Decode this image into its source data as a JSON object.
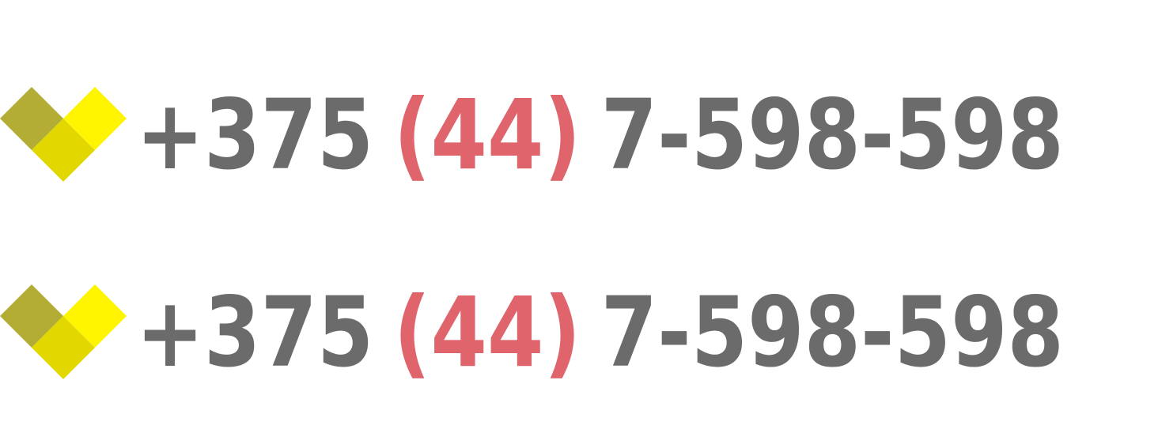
{
  "rows": [
    {
      "prefix": "+375",
      "code": "(44)",
      "number": "7-598-598"
    },
    {
      "prefix": "+375",
      "code": "(44)",
      "number": "7-598-598"
    }
  ]
}
